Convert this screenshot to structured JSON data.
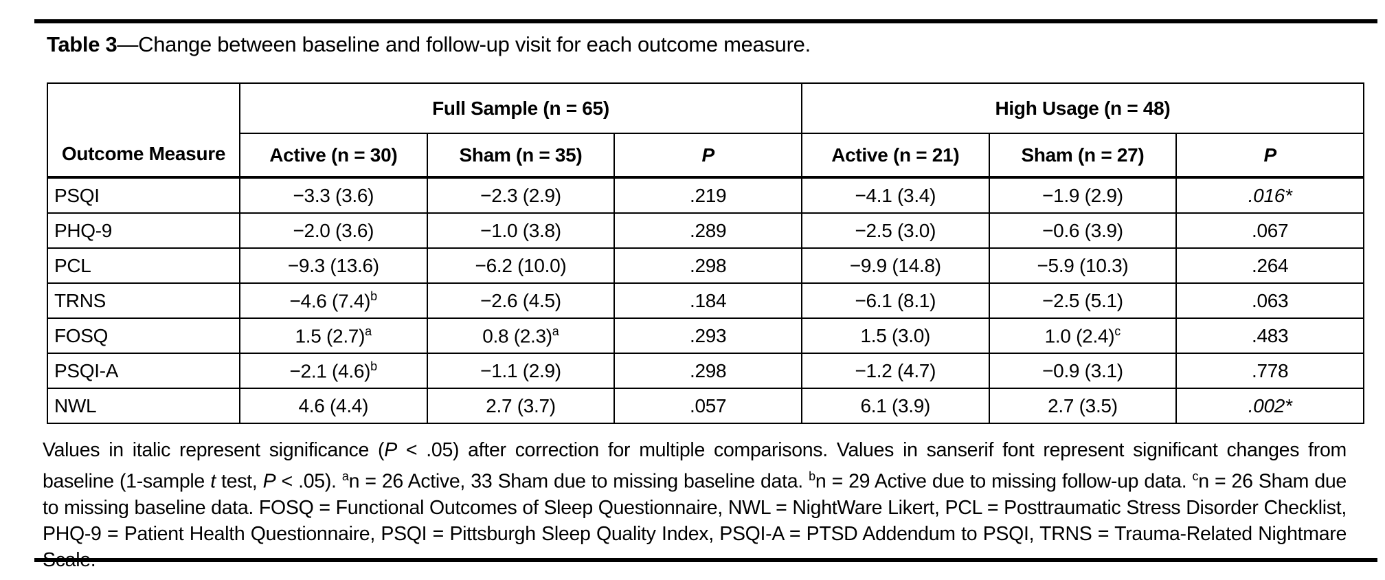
{
  "title": {
    "label": "Table 3",
    "text": "—Change between baseline and follow-up visit for each outcome measure."
  },
  "table": {
    "corner_header": "Outcome Measure",
    "groups": [
      "Full Sample (n = 65)",
      "High Usage (n = 48)"
    ],
    "sub_headers": [
      "Active (n = 30)",
      "Sham (n = 35)",
      "P",
      "Active (n = 21)",
      "Sham (n = 27)",
      "P"
    ],
    "rows": [
      {
        "measure": "PSQI",
        "cells": [
          {
            "t": "−3.3 (3.6)"
          },
          {
            "t": "−2.3 (2.9)"
          },
          {
            "t": ".219"
          },
          {
            "t": "−4.1 (3.4)"
          },
          {
            "t": "−1.9 (2.9)"
          },
          {
            "t": ".016*",
            "i": true
          }
        ]
      },
      {
        "measure": "PHQ-9",
        "cells": [
          {
            "t": "−2.0 (3.6)"
          },
          {
            "t": "−1.0 (3.8)"
          },
          {
            "t": ".289"
          },
          {
            "t": "−2.5 (3.0)"
          },
          {
            "t": "−0.6 (3.9)"
          },
          {
            "t": ".067"
          }
        ]
      },
      {
        "measure": "PCL",
        "cells": [
          {
            "t": "−9.3 (13.6)"
          },
          {
            "t": "−6.2 (10.0)"
          },
          {
            "t": ".298"
          },
          {
            "t": "−9.9 (14.8)"
          },
          {
            "t": "−5.9 (10.3)"
          },
          {
            "t": ".264"
          }
        ]
      },
      {
        "measure": "TRNS",
        "cells": [
          {
            "t": "−4.6 (7.4)",
            "sup": "b"
          },
          {
            "t": "−2.6 (4.5)"
          },
          {
            "t": ".184"
          },
          {
            "t": "−6.1 (8.1)"
          },
          {
            "t": "−2.5 (5.1)"
          },
          {
            "t": ".063"
          }
        ]
      },
      {
        "measure": "FOSQ",
        "cells": [
          {
            "t": "1.5 (2.7)",
            "sup": "a"
          },
          {
            "t": "0.8 (2.3)",
            "sup": "a"
          },
          {
            "t": ".293"
          },
          {
            "t": "1.5 (3.0)"
          },
          {
            "t": "1.0 (2.4)",
            "sup": "c"
          },
          {
            "t": ".483"
          }
        ]
      },
      {
        "measure": "PSQI-A",
        "cells": [
          {
            "t": "−2.1 (4.6)",
            "sup": "b"
          },
          {
            "t": "−1.1 (2.9)"
          },
          {
            "t": ".298"
          },
          {
            "t": "−1.2 (4.7)"
          },
          {
            "t": "−0.9 (3.1)"
          },
          {
            "t": ".778"
          }
        ]
      },
      {
        "measure": "NWL",
        "cells": [
          {
            "t": "4.6 (4.4)"
          },
          {
            "t": "2.7 (3.7)"
          },
          {
            "t": ".057"
          },
          {
            "t": "6.1 (3.9)"
          },
          {
            "t": "2.7 (3.5)"
          },
          {
            "t": ".002*",
            "i": true
          }
        ]
      }
    ]
  },
  "footnote": {
    "segments": [
      {
        "t": "Values in italic represent significance ("
      },
      {
        "t": "P",
        "i": true
      },
      {
        "t": " < .05) after correction for multiple comparisons. Values in sanserif font represent significant changes from baseline (1-sample "
      },
      {
        "t": "t",
        "i": true
      },
      {
        "t": " test, "
      },
      {
        "t": "P",
        "i": true
      },
      {
        "t": " < .05). "
      },
      {
        "t": "a",
        "sup": true
      },
      {
        "t": "n = 26 Active, 33 Sham due to missing baseline data. "
      },
      {
        "t": "b",
        "sup": true
      },
      {
        "t": "n = 29 Active due to missing follow-up data. "
      },
      {
        "t": "c",
        "sup": true
      },
      {
        "t": "n = 26 Sham due to missing baseline data. FOSQ = Functional Outcomes of Sleep Questionnaire, NWL = NightWare Likert, PCL = Posttraumatic Stress Disorder Checklist, PHQ-9 = Patient Health Questionnaire, PSQI = Pittsburgh Sleep Quality Index, PSQI-A = PTSD Addendum to PSQI, TRNS = Trauma-Related Nightmare Scale."
      }
    ]
  }
}
